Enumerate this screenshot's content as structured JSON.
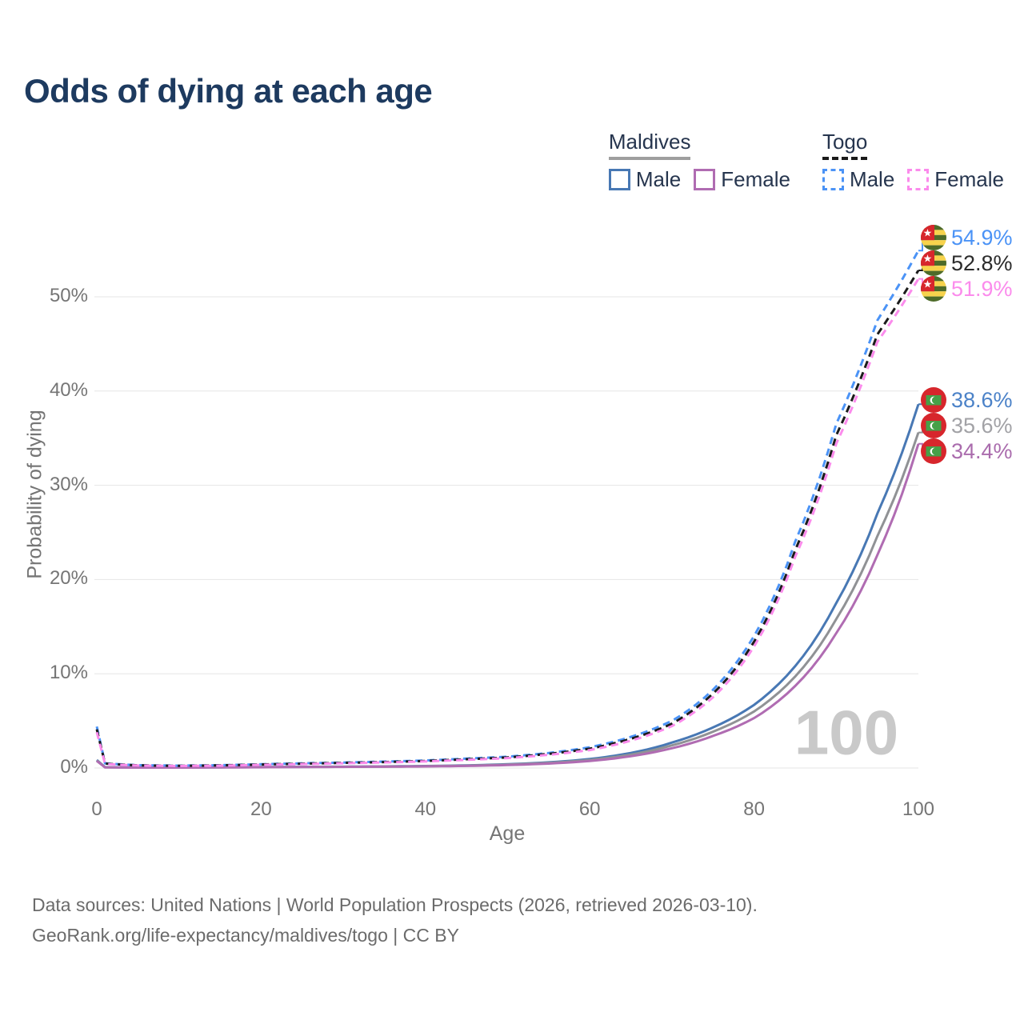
{
  "title": "Odds of dying at each age",
  "watermark": "100",
  "legend": {
    "groups": [
      {
        "label": "Maldives",
        "line_style": "solid",
        "underline_color": "#9e9e9e",
        "items": [
          {
            "label": "Male",
            "color": "#4878b4"
          },
          {
            "label": "Female",
            "color": "#b06cb2"
          }
        ]
      },
      {
        "label": "Togo",
        "line_style": "dashed",
        "underline_color": "#1a1a1a",
        "items": [
          {
            "label": "Male",
            "color": "#4b93f6"
          },
          {
            "label": "Female",
            "color": "#fb8bec"
          }
        ]
      }
    ]
  },
  "axes": {
    "x": {
      "label": "Age",
      "ticks": [
        "0",
        "20",
        "40",
        "60",
        "80",
        "100"
      ]
    },
    "y": {
      "label": "Probability of dying",
      "ticks": [
        "0%",
        "10%",
        "20%",
        "30%",
        "40%",
        "50%"
      ]
    }
  },
  "end_labels": [
    {
      "value": "54.9%",
      "flag": "togo",
      "color": "#4b93f6"
    },
    {
      "value": "52.8%",
      "flag": "togo",
      "color": "#2b2b2b"
    },
    {
      "value": "51.9%",
      "flag": "togo",
      "color": "#fb8bec"
    },
    {
      "value": "38.6%",
      "flag": "maldives",
      "color": "#4b82c8"
    },
    {
      "value": "35.6%",
      "flag": "maldives",
      "color": "#a2a2a6"
    },
    {
      "value": "34.4%",
      "flag": "maldives",
      "color": "#aa6cad"
    }
  ],
  "flag_colors": {
    "togo": {
      "red": "#D7262C",
      "green": "#4E6B29",
      "yellow": "#F7D34C",
      "star": "#ffffff"
    },
    "maldives": {
      "red": "#D7262C",
      "green": "#46A048",
      "crescent": "#ffffff"
    }
  },
  "footer": {
    "line1": "Data sources: United Nations | World Population Prospects (2026, retrieved 2026-03-10).",
    "line2": "GeoRank.org/life-expectancy/maldives/togo | CC BY"
  },
  "chart_data": {
    "type": "line",
    "title": "Odds of dying at each age",
    "xlabel": "Age",
    "ylabel": "Probability of dying",
    "xlim": [
      0,
      100
    ],
    "ylim_pct": [
      0,
      57
    ],
    "x_ticks": [
      0,
      20,
      40,
      60,
      80,
      100
    ],
    "y_ticks_pct": [
      0,
      10,
      20,
      30,
      40,
      50
    ],
    "grid": "horizontal",
    "legend_position": "top-right",
    "ages": [
      0,
      1,
      5,
      10,
      15,
      20,
      25,
      30,
      35,
      40,
      45,
      50,
      55,
      60,
      65,
      70,
      75,
      80,
      85,
      90,
      95,
      100
    ],
    "series": [
      {
        "name": "Togo Male",
        "country": "Togo",
        "sex": "male",
        "style": "dashed",
        "color": "#4b93f6",
        "end_value_pct": 54.9,
        "values_pct": [
          4.4,
          0.5,
          0.3,
          0.25,
          0.3,
          0.4,
          0.5,
          0.58,
          0.68,
          0.8,
          1.0,
          1.2,
          1.6,
          2.2,
          3.3,
          5.0,
          8.3,
          14.0,
          24.0,
          36.5,
          47.5,
          54.9
        ]
      },
      {
        "name": "Togo Both sexes",
        "country": "Togo",
        "sex": "both",
        "style": "dashed",
        "color": "#1b1b1b",
        "end_value_pct": 52.8,
        "values_pct": [
          4.1,
          0.47,
          0.28,
          0.23,
          0.28,
          0.37,
          0.46,
          0.54,
          0.63,
          0.75,
          0.93,
          1.12,
          1.5,
          2.05,
          3.1,
          4.7,
          7.9,
          13.4,
          23.1,
          35.3,
          46.0,
          52.8
        ]
      },
      {
        "name": "Togo Female",
        "country": "Togo",
        "sex": "female",
        "style": "dashed",
        "color": "#fb8bec",
        "end_value_pct": 51.9,
        "values_pct": [
          3.8,
          0.43,
          0.26,
          0.21,
          0.25,
          0.33,
          0.42,
          0.5,
          0.59,
          0.7,
          0.87,
          1.05,
          1.4,
          1.9,
          2.9,
          4.45,
          7.5,
          12.9,
          22.4,
          34.4,
          45.2,
          51.9
        ]
      },
      {
        "name": "Maldives Male",
        "country": "Maldives",
        "sex": "male",
        "style": "solid",
        "color": "#4878b4",
        "end_value_pct": 38.6,
        "values_pct": [
          0.85,
          0.09,
          0.05,
          0.05,
          0.08,
          0.1,
          0.12,
          0.14,
          0.17,
          0.21,
          0.28,
          0.4,
          0.6,
          0.95,
          1.6,
          2.7,
          4.3,
          6.7,
          10.8,
          17.5,
          27.0,
          38.6
        ]
      },
      {
        "name": "Maldives Both sexes",
        "country": "Maldives",
        "sex": "both",
        "style": "solid",
        "color": "#909295",
        "end_value_pct": 35.6,
        "values_pct": [
          0.8,
          0.08,
          0.045,
          0.045,
          0.07,
          0.09,
          0.11,
          0.13,
          0.15,
          0.19,
          0.25,
          0.36,
          0.54,
          0.85,
          1.42,
          2.4,
          3.85,
          6.0,
          9.7,
          15.8,
          24.6,
          35.6
        ]
      },
      {
        "name": "Maldives Female",
        "country": "Maldives",
        "sex": "female",
        "style": "solid",
        "color": "#b06cb2",
        "end_value_pct": 34.4,
        "values_pct": [
          0.75,
          0.07,
          0.04,
          0.04,
          0.06,
          0.08,
          0.1,
          0.12,
          0.14,
          0.17,
          0.22,
          0.31,
          0.47,
          0.74,
          1.25,
          2.1,
          3.4,
          5.3,
          8.7,
          14.3,
          22.6,
          34.4
        ]
      }
    ]
  }
}
